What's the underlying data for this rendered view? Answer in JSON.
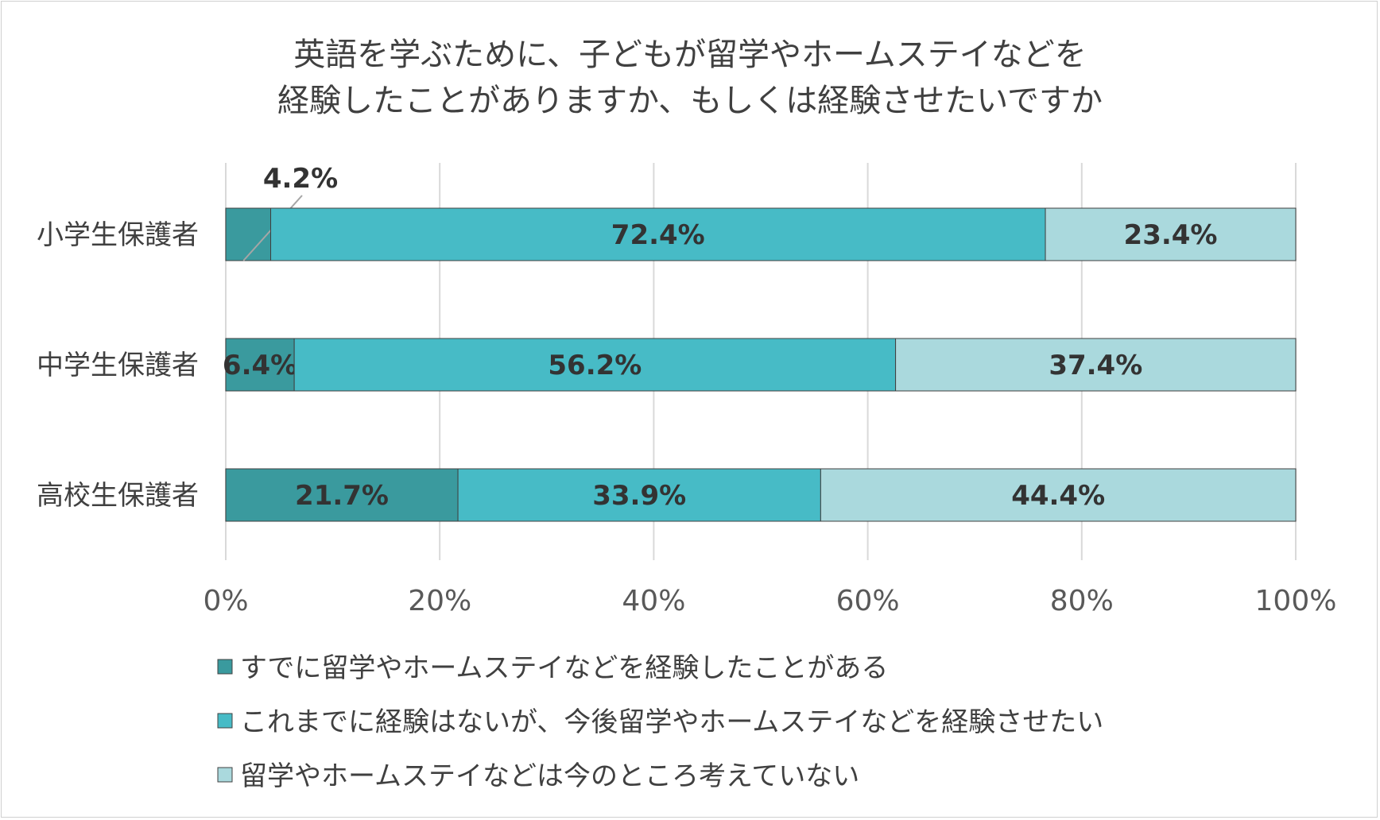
{
  "chart_data": {
    "type": "bar",
    "orientation": "horizontal",
    "stacked": true,
    "title": [
      "英語を学ぶために、子どもが留学やホームステイなどを",
      "経験したことがありますか、もしくは経験させたいですか"
    ],
    "categories": [
      "小学生保護者",
      "中学生保護者",
      "高校生保護者"
    ],
    "series": [
      {
        "name": "すでに留学やホームステイなどを経験したことがある",
        "values": [
          4.2,
          6.4,
          21.7
        ],
        "labels": [
          "4.2%",
          "6.4%",
          "21.7%"
        ],
        "color": "#3a9a9e"
      },
      {
        "name": "これまでに経験はないが、今後留学やホームステイなどを経験させたい",
        "values": [
          72.4,
          56.2,
          33.9
        ],
        "labels": [
          "72.4%",
          "56.2%",
          "33.9%"
        ],
        "color": "#47bbc6"
      },
      {
        "name": "留学やホームステイなどは今のところ考えていない",
        "values": [
          23.4,
          37.4,
          44.4
        ],
        "labels": [
          "23.4%",
          "37.4%",
          "44.4%"
        ],
        "color": "#aad9dd"
      }
    ],
    "xlim": [
      0,
      100
    ],
    "xticks": [
      0,
      20,
      40,
      60,
      80,
      100
    ],
    "xtick_labels": [
      "0%",
      "20%",
      "40%",
      "60%",
      "80%",
      "100%"
    ],
    "grid": true,
    "legend": "bottom"
  }
}
